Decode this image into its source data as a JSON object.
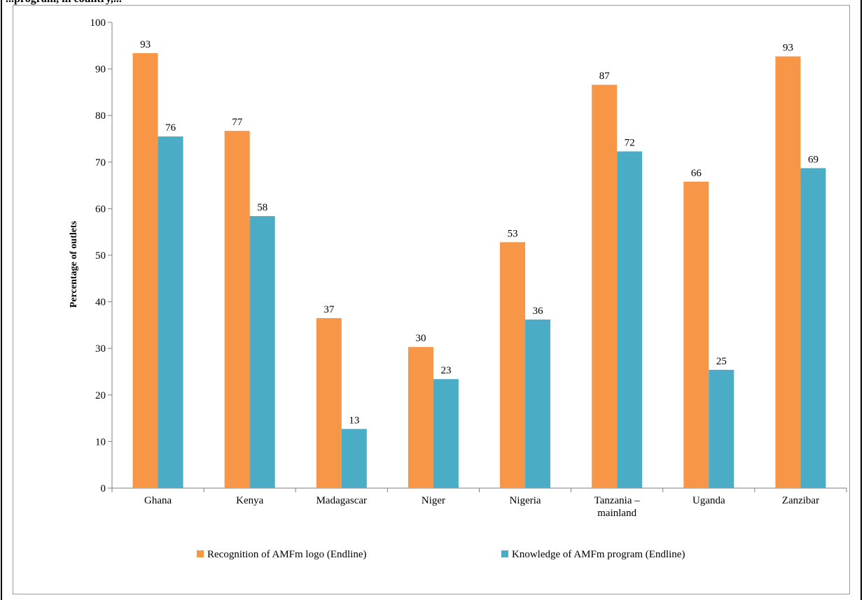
{
  "caption": "...program, in country,...",
  "chart_data": {
    "type": "bar",
    "title": "",
    "xlabel": "",
    "ylabel": "Percentage of outlets",
    "ylim": [
      0,
      100
    ],
    "yticks": [
      0,
      10,
      20,
      30,
      40,
      50,
      60,
      70,
      80,
      90,
      100
    ],
    "grid": false,
    "legend_position": "bottom",
    "categories": [
      "Ghana",
      "Kenya",
      "Madagascar",
      "Niger",
      "Nigeria",
      "Tanzania – mainland",
      "Uganda",
      "Zanzibar"
    ],
    "category_lines": [
      [
        "Ghana"
      ],
      [
        "Kenya"
      ],
      [
        "Madagascar"
      ],
      [
        "Niger"
      ],
      [
        "Nigeria"
      ],
      [
        "Tanzania –",
        "mainland"
      ],
      [
        "Uganda"
      ],
      [
        "Zanzibar"
      ]
    ],
    "series": [
      {
        "name": "Recognition of AMFm logo (Endline)",
        "color": "#F79646",
        "values": [
          93.4,
          76.7,
          36.5,
          30.3,
          52.8,
          86.6,
          65.8,
          92.7
        ],
        "labels": [
          "93",
          "77",
          "37",
          "30",
          "53",
          "87",
          "66",
          "93"
        ]
      },
      {
        "name": "Knowledge of AMFm program (Endline)",
        "color": "#4BACC6",
        "values": [
          75.5,
          58.4,
          12.7,
          23.4,
          36.2,
          72.3,
          25.4,
          68.7
        ],
        "labels": [
          "76",
          "58",
          "13",
          "23",
          "36",
          "72",
          "25",
          "69"
        ]
      }
    ]
  }
}
